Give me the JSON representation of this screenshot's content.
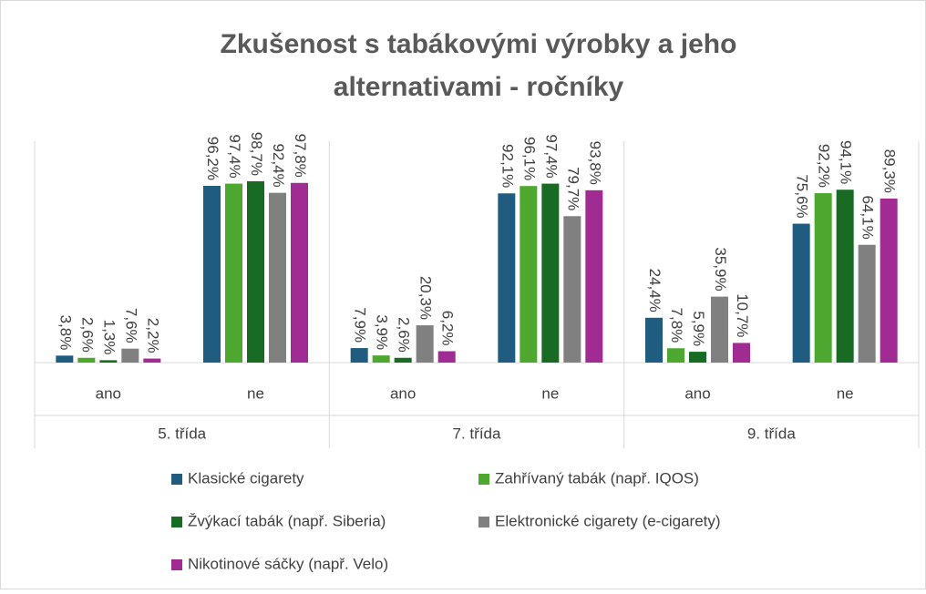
{
  "chart_data": {
    "type": "bar",
    "title": "Zkušenost s tabákovými výrobky a jeho alternativami - ročníky",
    "categories": [
      "ano",
      "ne",
      "ano",
      "ne",
      "ano",
      "ne"
    ],
    "groups": [
      "5. třída",
      "7. třída",
      "9. třída"
    ],
    "ylim": [
      0,
      120
    ],
    "legend": "bottom",
    "series": [
      {
        "name": "Klasické cigarety",
        "color": "#1f5c80",
        "values": [
          3.8,
          96.2,
          7.9,
          92.1,
          24.4,
          75.6
        ],
        "value_labels": [
          "3,8%",
          "96,2%",
          "7,9%",
          "92,1%",
          "24,4%",
          "75,6%"
        ]
      },
      {
        "name": "Zahřívaný tabák (např. IQOS)",
        "color": "#4ea72e",
        "values": [
          2.6,
          97.4,
          3.9,
          96.1,
          7.8,
          92.2
        ],
        "value_labels": [
          "2,6%",
          "97,4%",
          "3,9%",
          "96,1%",
          "7,8%",
          "92,2%"
        ]
      },
      {
        "name": "Žvýkací tabák (např. Siberia)",
        "color": "#196b24",
        "values": [
          1.3,
          98.7,
          2.6,
          97.4,
          5.9,
          94.1
        ],
        "value_labels": [
          "1,3%",
          "98,7%",
          "2,6%",
          "97,4%",
          "5,9%",
          "94,1%"
        ]
      },
      {
        "name": "Elektronické cigarety (e-cigarety)",
        "color": "#808080",
        "values": [
          7.6,
          92.4,
          20.3,
          79.7,
          35.9,
          64.1
        ],
        "value_labels": [
          "7,6%",
          "92,4%",
          "20,3%",
          "79,7%",
          "35,9%",
          "64,1%"
        ]
      },
      {
        "name": "Nikotinové sáčky (např. Velo)",
        "color": "#a02b93",
        "values": [
          2.2,
          97.8,
          6.2,
          93.8,
          10.7,
          89.3
        ],
        "value_labels": [
          "2,2%",
          "97,8%",
          "6,2%",
          "93,8%",
          "10,7%",
          "89,3%"
        ]
      }
    ]
  }
}
